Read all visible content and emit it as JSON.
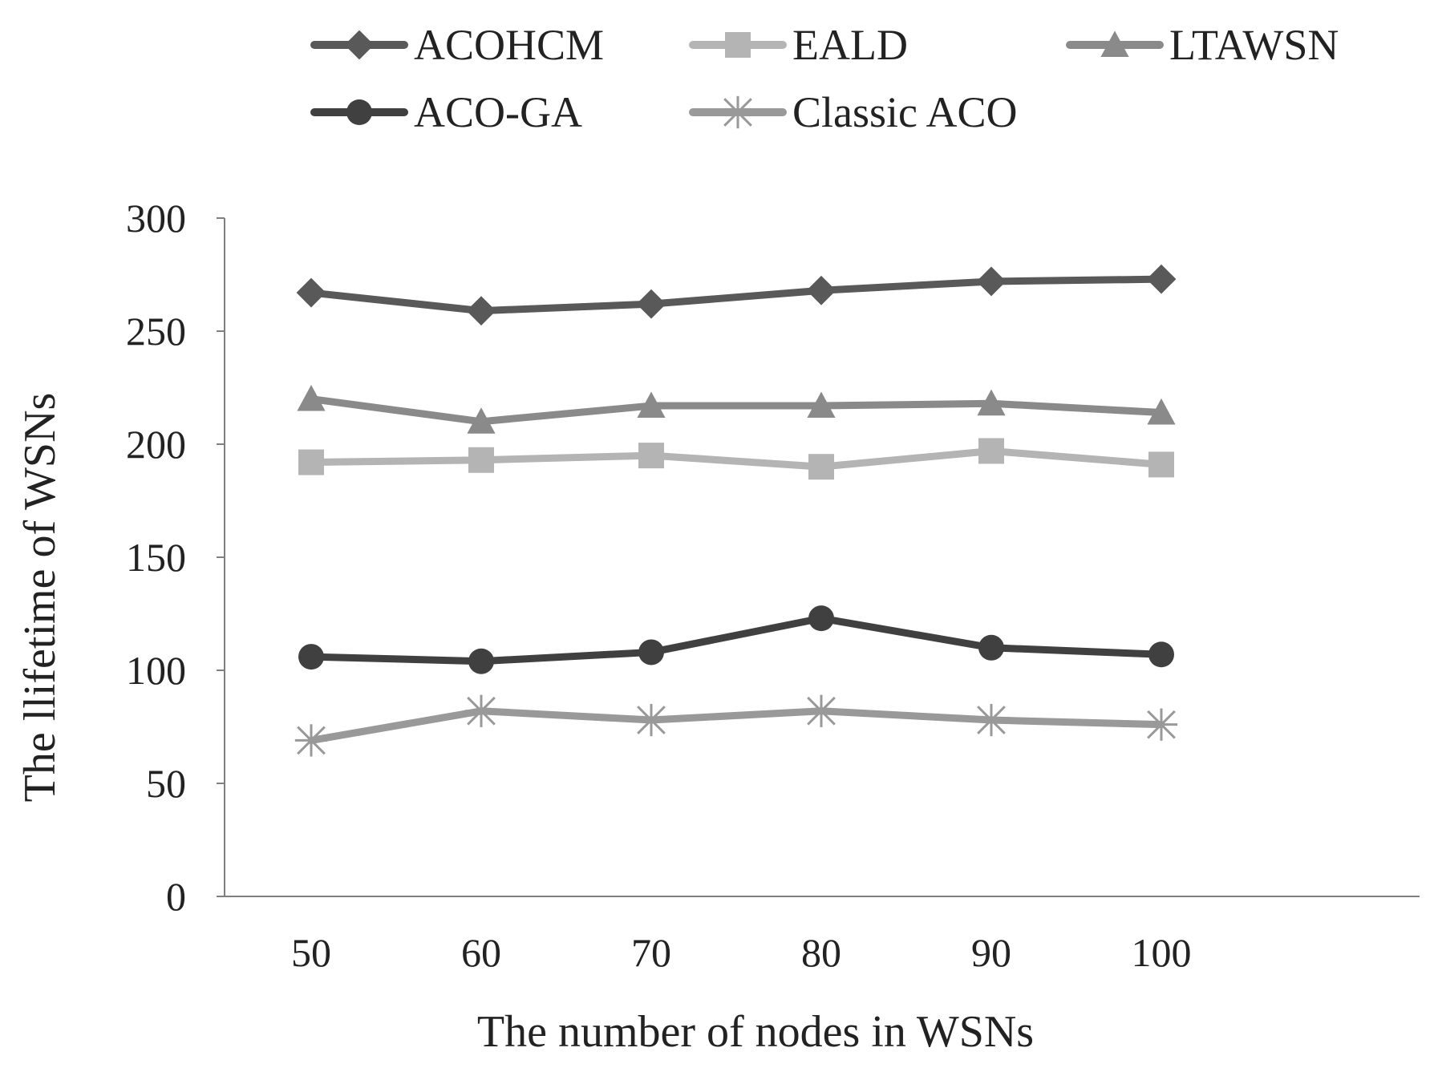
{
  "chart_data": {
    "type": "line",
    "title": "",
    "xlabel": "The number of nodes in WSNs",
    "ylabel": "The llifetime of WSNs",
    "x": [
      50,
      60,
      70,
      80,
      90,
      100
    ],
    "x_tick_labels": [
      "50",
      "60",
      "70",
      "80",
      "90",
      "100"
    ],
    "ylim": [
      0,
      300
    ],
    "y_ticks": [
      0,
      50,
      100,
      150,
      200,
      250,
      300
    ],
    "grid": false,
    "legend_position": "top",
    "series": [
      {
        "name": "ACOHCM",
        "marker": "diamond",
        "color": "#595959",
        "values": [
          267,
          259,
          262,
          268,
          272,
          273
        ]
      },
      {
        "name": "EALD",
        "marker": "square",
        "color": "#b4b4b4",
        "values": [
          192,
          193,
          195,
          190,
          197,
          191
        ]
      },
      {
        "name": "LTAWSN",
        "marker": "triangle",
        "color": "#8a8a8a",
        "values": [
          220,
          210,
          217,
          217,
          218,
          214
        ]
      },
      {
        "name": "ACO-GA",
        "marker": "circle",
        "color": "#404040",
        "values": [
          106,
          104,
          108,
          123,
          110,
          107
        ]
      },
      {
        "name": "Classic ACO",
        "marker": "asterisk",
        "color": "#999999",
        "values": [
          69,
          82,
          78,
          82,
          78,
          76
        ]
      }
    ]
  }
}
